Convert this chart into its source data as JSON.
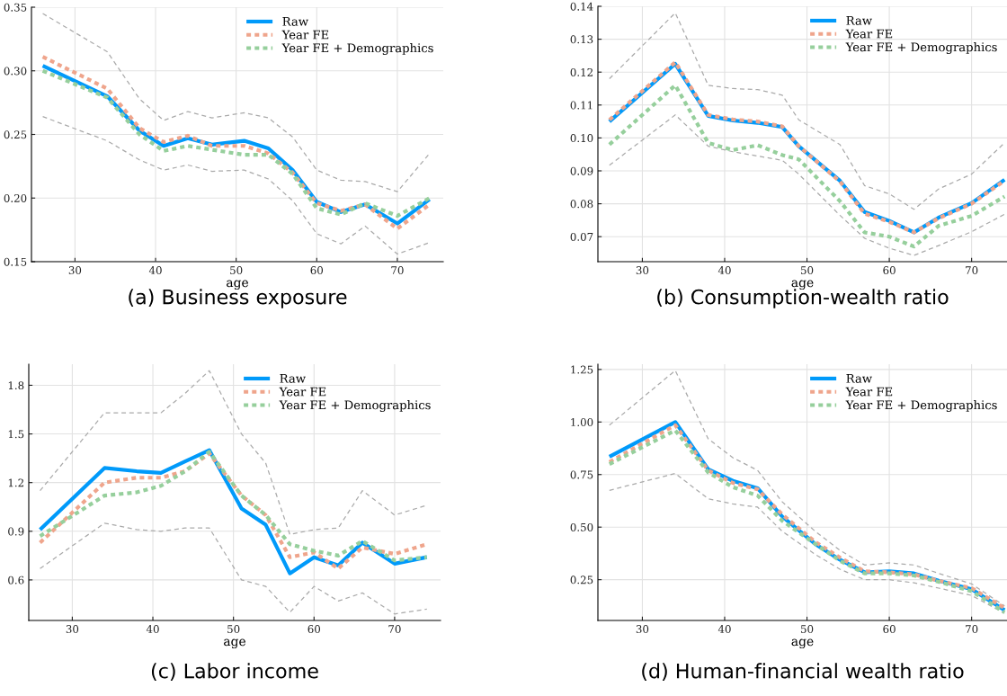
{
  "chart_data": [
    {
      "type": "line",
      "title": "(a) Business exposure",
      "xlabel": "age",
      "x": [
        26,
        34,
        38,
        41,
        44,
        47,
        51,
        54,
        57,
        60,
        63,
        66,
        70,
        74
      ],
      "xlim": [
        24.6,
        75.7
      ],
      "xticks": [
        30,
        40,
        50,
        60,
        70
      ],
      "ylim": [
        0.15,
        0.35
      ],
      "yticks": [
        {
          "value": 0.15,
          "label": "0.15"
        },
        {
          "value": 0.2,
          "label": "0.20"
        },
        {
          "value": 0.25,
          "label": "0.25"
        },
        {
          "value": 0.3,
          "label": "0.30"
        },
        {
          "value": 0.35,
          "label": "0.35"
        }
      ],
      "grid": true,
      "legend": "top right",
      "series": [
        {
          "color": "#aaaaaa",
          "line_style": "dashed",
          "values": [
            0.345,
            0.315,
            0.278,
            0.261,
            0.268,
            0.263,
            0.267,
            0.263,
            0.248,
            0.222,
            0.214,
            0.213,
            0.205,
            0.235
          ]
        },
        {
          "color": "#aaaaaa",
          "line_style": "dashed",
          "values": [
            0.264,
            0.245,
            0.23,
            0.222,
            0.226,
            0.221,
            0.222,
            0.215,
            0.198,
            0.172,
            0.164,
            0.178,
            0.156,
            0.165
          ]
        },
        {
          "name": "Raw",
          "color": "#009afa",
          "line_style": "solid",
          "values": [
            0.304,
            0.28,
            0.253,
            0.241,
            0.247,
            0.242,
            0.245,
            0.239,
            0.222,
            0.197,
            0.189,
            0.195,
            0.18,
            0.199
          ]
        },
        {
          "name": "Year FE",
          "color": "#efa58c",
          "line_style": "dotted",
          "values": [
            0.311,
            0.286,
            0.255,
            0.244,
            0.249,
            0.241,
            0.241,
            0.235,
            0.22,
            0.196,
            0.19,
            0.195,
            0.176,
            0.195
          ]
        },
        {
          "name": "Year FE + Demographics",
          "color": "#96cf9c",
          "line_style": "dotted",
          "values": [
            0.3,
            0.279,
            0.25,
            0.237,
            0.241,
            0.238,
            0.234,
            0.234,
            0.219,
            0.192,
            0.187,
            0.196,
            0.186,
            0.2
          ]
        }
      ]
    },
    {
      "type": "line",
      "title": "(b) Consumption-wealth ratio",
      "xlabel": "age",
      "x": [
        26,
        34,
        38,
        41,
        44,
        47,
        49,
        54,
        57,
        60,
        63,
        66,
        70,
        74
      ],
      "xlim": [
        24.6,
        74.3
      ],
      "xticks": [
        30,
        40,
        50,
        60,
        70
      ],
      "ylim": [
        0.0624,
        0.14
      ],
      "yticks": [
        {
          "value": 0.07,
          "label": "0.07"
        },
        {
          "value": 0.08,
          "label": "0.08"
        },
        {
          "value": 0.09,
          "label": "0.09"
        },
        {
          "value": 0.1,
          "label": "0.10"
        },
        {
          "value": 0.11,
          "label": "0.11"
        },
        {
          "value": 0.12,
          "label": "0.12"
        },
        {
          "value": 0.13,
          "label": "0.13"
        },
        {
          "value": 0.14,
          "label": "0.14"
        }
      ],
      "grid": true,
      "legend": "top right",
      "series": [
        {
          "color": "#aaaaaa",
          "line_style": "dashed",
          "values": [
            0.118,
            0.138,
            0.116,
            0.115,
            0.1147,
            0.113,
            0.1055,
            0.098,
            0.0855,
            0.083,
            0.0783,
            0.0845,
            0.089,
            0.0985
          ]
        },
        {
          "color": "#aaaaaa",
          "line_style": "dashed",
          "values": [
            0.0917,
            0.107,
            0.0975,
            0.0958,
            0.0945,
            0.0932,
            0.089,
            0.0765,
            0.0695,
            0.0665,
            0.0643,
            0.0673,
            0.0715,
            0.0768
          ]
        },
        {
          "name": "Raw",
          "color": "#009afa",
          "line_style": "solid",
          "values": [
            0.105,
            0.1225,
            0.1067,
            0.1053,
            0.1046,
            0.1033,
            0.0975,
            0.087,
            0.0775,
            0.0748,
            0.0713,
            0.0758,
            0.0802,
            0.0873
          ]
        },
        {
          "name": "Year FE",
          "color": "#efa58c",
          "line_style": "dotted",
          "values": [
            0.1055,
            0.123,
            0.107,
            0.1056,
            0.105,
            0.1035,
            0.0975,
            0.0868,
            0.077,
            0.0745,
            0.0713,
            0.0756,
            0.08,
            0.087
          ]
        },
        {
          "name": "Year FE + Demographics",
          "color": "#96cf9c",
          "line_style": "dotted",
          "values": [
            0.098,
            0.116,
            0.0985,
            0.0963,
            0.0978,
            0.0948,
            0.0935,
            0.0808,
            0.0713,
            0.07,
            0.067,
            0.0733,
            0.0763,
            0.0822
          ]
        }
      ]
    },
    {
      "type": "line",
      "title": "(c) Labor income",
      "xlabel": "age",
      "x": [
        26,
        34,
        38,
        41,
        44,
        47,
        51,
        54,
        57,
        60,
        63,
        66,
        70,
        74
      ],
      "xlim": [
        24.6,
        75.7
      ],
      "xticks": [
        30,
        40,
        50,
        60,
        70
      ],
      "ylim": [
        0.35,
        1.93
      ],
      "yticks": [
        {
          "value": 0.6,
          "label": "0.6"
        },
        {
          "value": 0.9,
          "label": "0.9"
        },
        {
          "value": 1.2,
          "label": "1.2"
        },
        {
          "value": 1.5,
          "label": "1.5"
        },
        {
          "value": 1.8,
          "label": "1.8"
        }
      ],
      "grid": true,
      "legend": "top right",
      "series": [
        {
          "color": "#aaaaaa",
          "line_style": "dashed",
          "values": [
            1.15,
            1.63,
            1.63,
            1.63,
            1.75,
            1.89,
            1.5,
            1.32,
            0.88,
            0.91,
            0.92,
            1.15,
            1.0,
            1.06
          ]
        },
        {
          "color": "#aaaaaa",
          "line_style": "dashed",
          "values": [
            0.67,
            0.95,
            0.91,
            0.9,
            0.92,
            0.92,
            0.6,
            0.56,
            0.4,
            0.56,
            0.47,
            0.52,
            0.39,
            0.42
          ]
        },
        {
          "name": "Raw",
          "color": "#009afa",
          "line_style": "solid",
          "values": [
            0.91,
            1.29,
            1.27,
            1.26,
            1.33,
            1.4,
            1.04,
            0.94,
            0.64,
            0.74,
            0.69,
            0.83,
            0.7,
            0.74
          ]
        },
        {
          "name": "Year FE",
          "color": "#efa58c",
          "line_style": "dotted",
          "values": [
            0.83,
            1.2,
            1.23,
            1.23,
            1.27,
            1.38,
            1.12,
            1.0,
            0.74,
            0.77,
            0.67,
            0.8,
            0.76,
            0.82
          ]
        },
        {
          "name": "Year FE + Demographics",
          "color": "#96cf9c",
          "line_style": "dotted",
          "values": [
            0.87,
            1.12,
            1.14,
            1.18,
            1.27,
            1.39,
            1.12,
            1.0,
            0.82,
            0.78,
            0.75,
            0.84,
            0.72,
            0.74
          ]
        }
      ]
    },
    {
      "type": "line",
      "title": "(d) Human-financial wealth ratio",
      "xlabel": "age",
      "x": [
        26,
        34,
        38,
        41,
        44,
        47,
        51,
        54,
        57,
        60,
        63,
        66,
        70,
        74
      ],
      "xlim": [
        24.6,
        74.3
      ],
      "xticks": [
        30,
        40,
        50,
        60,
        70
      ],
      "ylim": [
        0.056,
        1.275
      ],
      "yticks": [
        {
          "value": 0.25,
          "label": "0.25"
        },
        {
          "value": 0.5,
          "label": "0.50"
        },
        {
          "value": 0.75,
          "label": "0.75"
        },
        {
          "value": 1.0,
          "label": "1.00"
        },
        {
          "value": 1.25,
          "label": "1.25"
        }
      ],
      "grid": true,
      "legend": "top right",
      "series": [
        {
          "color": "#aaaaaa",
          "line_style": "dashed",
          "values": [
            0.985,
            1.245,
            0.92,
            0.83,
            0.77,
            0.62,
            0.48,
            0.39,
            0.32,
            0.33,
            0.32,
            0.28,
            0.23,
            0.125
          ]
        },
        {
          "color": "#aaaaaa",
          "line_style": "dashed",
          "values": [
            0.675,
            0.755,
            0.635,
            0.61,
            0.595,
            0.48,
            0.37,
            0.3,
            0.25,
            0.25,
            0.235,
            0.21,
            0.175,
            0.09
          ]
        },
        {
          "name": "Raw",
          "color": "#009afa",
          "line_style": "solid",
          "values": [
            0.835,
            1.0,
            0.775,
            0.72,
            0.685,
            0.55,
            0.42,
            0.345,
            0.285,
            0.29,
            0.28,
            0.245,
            0.205,
            0.105
          ]
        },
        {
          "name": "Year FE",
          "color": "#efa58c",
          "line_style": "dotted",
          "values": [
            0.81,
            0.985,
            0.77,
            0.71,
            0.68,
            0.56,
            0.43,
            0.355,
            0.29,
            0.285,
            0.275,
            0.245,
            0.21,
            0.115
          ]
        },
        {
          "name": "Year FE + Demographics",
          "color": "#96cf9c",
          "line_style": "dotted",
          "values": [
            0.8,
            0.96,
            0.76,
            0.69,
            0.65,
            0.53,
            0.42,
            0.34,
            0.28,
            0.28,
            0.27,
            0.24,
            0.195,
            0.095
          ]
        }
      ]
    }
  ]
}
